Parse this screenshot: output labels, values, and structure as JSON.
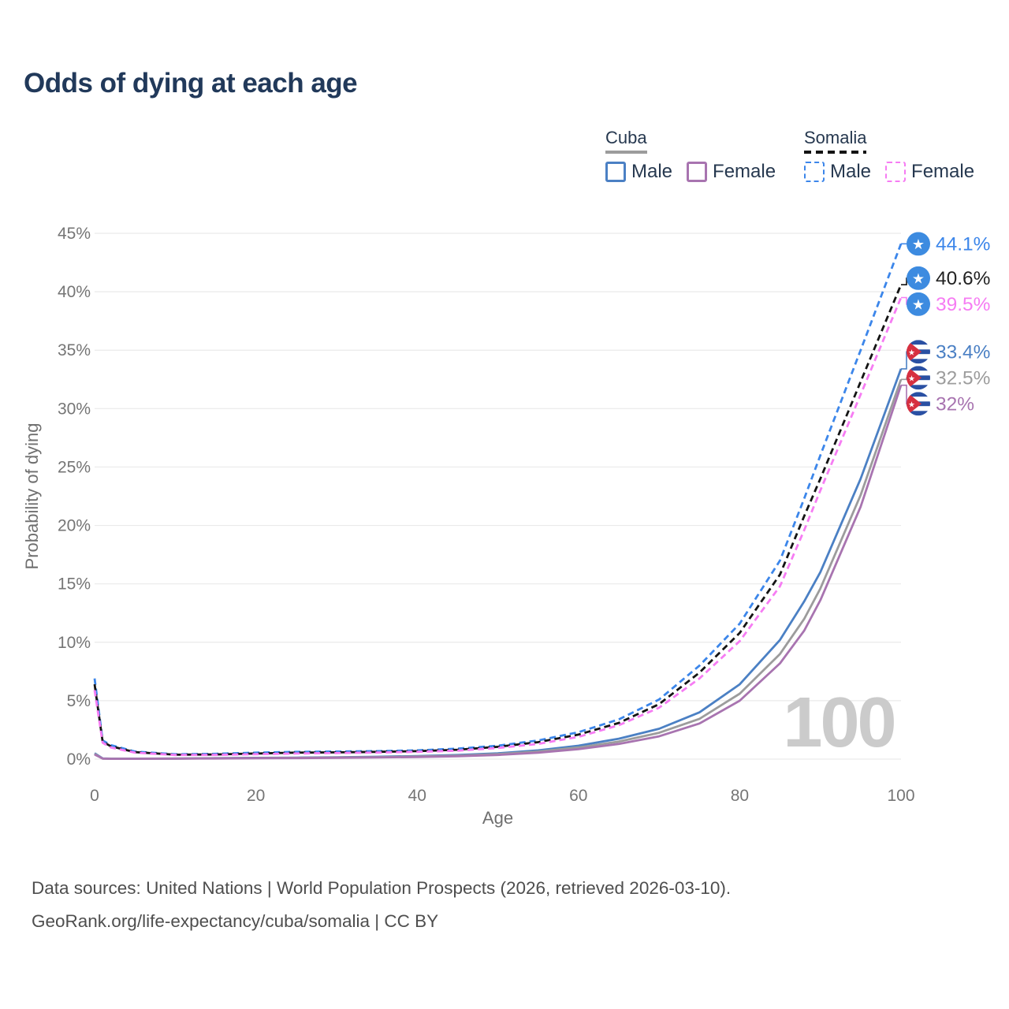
{
  "page": {
    "title": "Odds of dying at each age",
    "background": "#ffffff",
    "title_color": "#21395a"
  },
  "legend": {
    "groups": [
      {
        "label": "Cuba",
        "line_style": "solid",
        "items": [
          {
            "label": "Male"
          },
          {
            "label": "Female"
          }
        ]
      },
      {
        "label": "Somalia",
        "line_style": "dashed",
        "items": [
          {
            "label": "Male"
          },
          {
            "label": "Female"
          }
        ]
      }
    ]
  },
  "chart_data": {
    "type": "line",
    "title": "Odds of dying at each age",
    "xlabel": "Age",
    "ylabel": "Probability of dying",
    "xlim": [
      0,
      100
    ],
    "ylim": [
      0,
      45
    ],
    "x_ticks": [
      0,
      20,
      40,
      60,
      80,
      100
    ],
    "y_ticks": [
      0,
      5,
      10,
      15,
      20,
      25,
      30,
      35,
      40,
      45
    ],
    "y_tick_suffix": "%",
    "grid": true,
    "grid_color": "#eaeaea",
    "tick_color": "#757575",
    "axis_label_color": "#6f6f6f",
    "legend_position": "top-right",
    "watermark": "100",
    "watermark_color": "#cbcbcb",
    "x": [
      0,
      1,
      2,
      5,
      10,
      15,
      20,
      25,
      30,
      35,
      40,
      45,
      50,
      55,
      60,
      65,
      70,
      75,
      80,
      85,
      88,
      90,
      95,
      100
    ],
    "series": [
      {
        "name": "Somalia Male",
        "country": "Somalia",
        "sex": "Male",
        "line": "dashed",
        "flag": "somalia",
        "color": "#3c86ea",
        "label_color": "#3c86ea",
        "end_label": "44.1%",
        "values": [
          6.9,
          1.6,
          1.2,
          0.65,
          0.42,
          0.45,
          0.55,
          0.62,
          0.65,
          0.68,
          0.75,
          0.9,
          1.15,
          1.6,
          2.3,
          3.4,
          5.1,
          8.0,
          11.6,
          17.0,
          22.3,
          26.0,
          35.0,
          44.1
        ]
      },
      {
        "name": "Somalia",
        "country": "Somalia",
        "sex": "Both",
        "line": "dashed",
        "flag": "somalia",
        "color": "#141414",
        "label_color": "#222222",
        "end_label": "40.6%",
        "values": [
          6.4,
          1.5,
          1.1,
          0.6,
          0.38,
          0.4,
          0.48,
          0.55,
          0.58,
          0.62,
          0.68,
          0.8,
          1.05,
          1.45,
          2.1,
          3.1,
          4.7,
          7.4,
          10.8,
          15.8,
          20.8,
          24.0,
          32.3,
          40.6
        ]
      },
      {
        "name": "Somalia Female",
        "country": "Somalia",
        "sex": "Female",
        "line": "dashed",
        "flag": "somalia",
        "color": "#f67cf3",
        "label_color": "#f67cf3",
        "end_label": "39.5%",
        "values": [
          5.9,
          1.4,
          1.0,
          0.55,
          0.35,
          0.36,
          0.42,
          0.48,
          0.52,
          0.56,
          0.62,
          0.72,
          0.95,
          1.3,
          1.9,
          2.9,
          4.4,
          6.9,
          10.1,
          14.8,
          19.6,
          23.0,
          31.2,
          39.5
        ]
      },
      {
        "name": "Cuba Male",
        "country": "Cuba",
        "sex": "Male",
        "line": "solid",
        "flag": "cuba",
        "color": "#4b80c4",
        "label_color": "#4b80c4",
        "end_label": "33.4%",
        "values": [
          0.5,
          0.06,
          0.04,
          0.04,
          0.05,
          0.08,
          0.11,
          0.13,
          0.16,
          0.2,
          0.26,
          0.35,
          0.5,
          0.75,
          1.15,
          1.75,
          2.6,
          4.0,
          6.4,
          10.2,
          13.5,
          16.0,
          24.0,
          33.4
        ]
      },
      {
        "name": "Cuba",
        "country": "Cuba",
        "sex": "Both",
        "line": "solid",
        "flag": "cuba",
        "color": "#9c9c9c",
        "label_color": "#9c9c9c",
        "end_label": "32.5%",
        "values": [
          0.45,
          0.05,
          0.035,
          0.035,
          0.045,
          0.07,
          0.09,
          0.11,
          0.14,
          0.17,
          0.22,
          0.3,
          0.43,
          0.65,
          1.0,
          1.5,
          2.25,
          3.45,
          5.6,
          9.0,
          12.0,
          14.6,
          22.6,
          32.5
        ]
      },
      {
        "name": "Cuba Female",
        "country": "Cuba",
        "sex": "Female",
        "line": "solid",
        "flag": "cuba",
        "color": "#a874b0",
        "label_color": "#a874b0",
        "end_label": "32%",
        "values": [
          0.4,
          0.045,
          0.03,
          0.03,
          0.04,
          0.055,
          0.075,
          0.09,
          0.11,
          0.14,
          0.18,
          0.25,
          0.36,
          0.55,
          0.85,
          1.3,
          1.95,
          3.05,
          5.0,
          8.2,
          11.0,
          13.6,
          21.6,
          32.0
        ]
      }
    ],
    "flag_colors": {
      "somalia_blue": "#3d8be0",
      "cuba_blue": "#2a50a3",
      "cuba_red": "#d63040",
      "star_white": "#ffffff"
    }
  },
  "footer": {
    "line1": "Data sources: United Nations | World Population Prospects (2026, retrieved 2026-03-10).",
    "line2": "GeoRank.org/life-expectancy/cuba/somalia | CC BY"
  }
}
